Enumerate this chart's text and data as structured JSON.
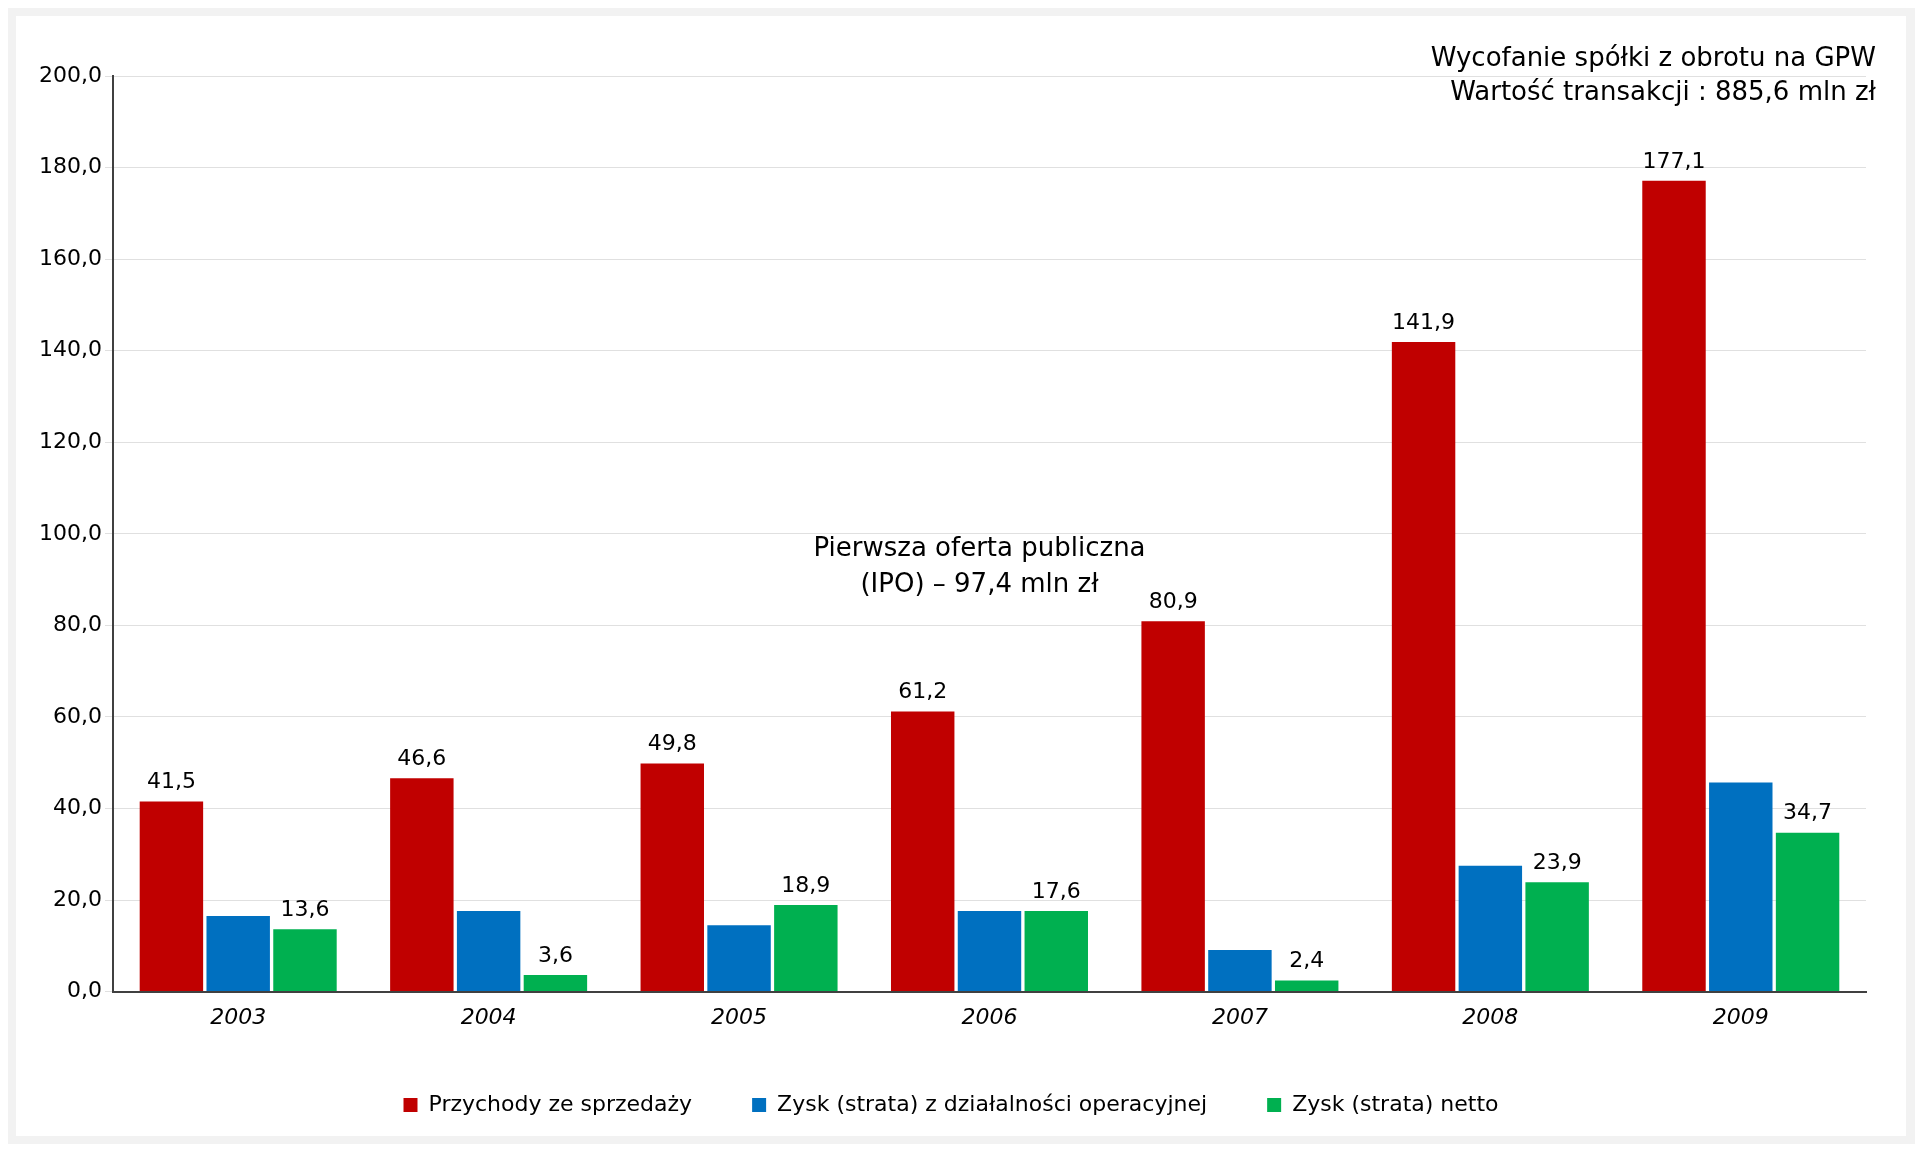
{
  "chart_data": {
    "type": "bar",
    "categories": [
      "2003",
      "2004",
      "2005",
      "2006",
      "2007",
      "2008",
      "2009"
    ],
    "series": [
      {
        "name": "Przychody ze sprzedaży",
        "color": "#c00000",
        "values": [
          41.5,
          46.6,
          49.8,
          61.2,
          80.9,
          141.9,
          177.1
        ],
        "value_labels": [
          "41,5",
          "46,6",
          "49,8",
          "61,2",
          "80,9",
          "141,9",
          "177,1"
        ]
      },
      {
        "name": "Zysk (strata) z działalności operacyjnej",
        "color": "#0070c0",
        "values": [
          16.5,
          17.6,
          14.5,
          17.6,
          9.1,
          27.5,
          45.7
        ]
      },
      {
        "name": "Zysk (strata) netto",
        "color": "#00b050",
        "values": [
          13.6,
          3.6,
          18.9,
          17.6,
          2.4,
          23.9,
          34.7
        ],
        "value_labels": [
          "13,6",
          "3,6",
          "18,9",
          "17,6",
          "2,4",
          "23,9",
          "34,7"
        ]
      }
    ],
    "ylim": [
      0,
      200
    ],
    "yticks": [
      {
        "value": 0,
        "label": "0,0"
      },
      {
        "value": 20,
        "label": "20,0"
      },
      {
        "value": 40,
        "label": "40,0"
      },
      {
        "value": 60,
        "label": "60,0"
      },
      {
        "value": 80,
        "label": "80,0"
      },
      {
        "value": 100,
        "label": "100,0"
      },
      {
        "value": 120,
        "label": "120,0"
      },
      {
        "value": 140,
        "label": "140,0"
      },
      {
        "value": 160,
        "label": "160,0"
      },
      {
        "value": 180,
        "label": "180,0"
      },
      {
        "value": 200,
        "label": "200,0"
      }
    ],
    "grid": "y",
    "legend": "bottom",
    "annotations": [
      "Wycofanie spółki z obrotu na GPW",
      "Wartość transakcji : 885,6 mln zł",
      "Pierwsza oferta publiczna (IPO) – 97,4 mln zł"
    ]
  }
}
